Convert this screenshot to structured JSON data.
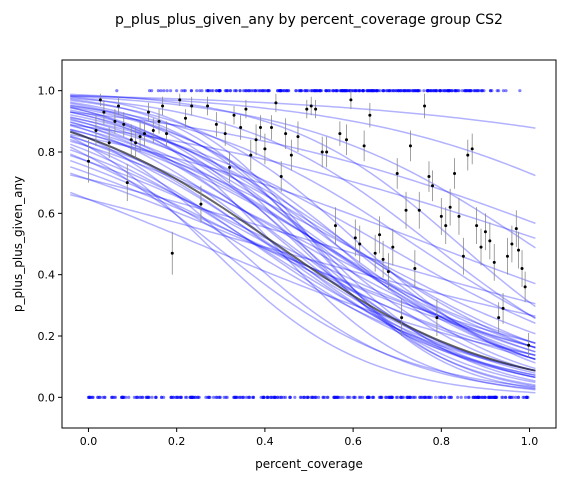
{
  "chart_data": {
    "type": "scatter",
    "title": "p_plus_plus_given_any by percent_coverage group CS2",
    "xlabel": "percent_coverage",
    "ylabel": "p_plus_plus_given_any",
    "xlim": [
      -0.06,
      1.06
    ],
    "ylim": [
      -0.1,
      1.1
    ],
    "xticks": [
      0.0,
      0.2,
      0.4,
      0.6,
      0.8,
      1.0
    ],
    "xtick_labels": [
      "0.0",
      "0.2",
      "0.4",
      "0.6",
      "0.8",
      "1.0"
    ],
    "yticks": [
      0.0,
      0.2,
      0.4,
      0.6,
      0.8,
      1.0
    ],
    "ytick_labels": [
      "0.0",
      "0.2",
      "0.4",
      "0.6",
      "0.8",
      "1.0"
    ],
    "grid": false,
    "colors": {
      "observations": "#0000ff",
      "fits": "#0000ff",
      "mean_fit": "#333333",
      "binned": "#000000",
      "errorbar": "#888888"
    },
    "mean_fit": {
      "form": "logistic",
      "a": 1.7,
      "b": -4.0
    },
    "fit_curves": [
      {
        "a": 2.4,
        "b": -4.3
      },
      {
        "a": 2.0,
        "b": -3.8
      },
      {
        "a": 1.6,
        "b": -3.9
      },
      {
        "a": 1.2,
        "b": -3.5
      },
      {
        "a": 2.8,
        "b": -5.0
      },
      {
        "a": 1.5,
        "b": -3.0
      },
      {
        "a": 1.9,
        "b": -4.5
      },
      {
        "a": 1.1,
        "b": -2.9
      },
      {
        "a": 2.2,
        "b": -4.1
      },
      {
        "a": 1.3,
        "b": -3.2
      },
      {
        "a": 2.6,
        "b": -5.5
      },
      {
        "a": 1.8,
        "b": -3.4
      },
      {
        "a": 1.0,
        "b": -2.6
      },
      {
        "a": 2.1,
        "b": -3.6
      },
      {
        "a": 1.4,
        "b": -3.7
      },
      {
        "a": 1.7,
        "b": -4.2
      },
      {
        "a": 2.5,
        "b": -4.8
      },
      {
        "a": 0.9,
        "b": -2.4
      },
      {
        "a": 2.3,
        "b": -3.9
      },
      {
        "a": 1.6,
        "b": -3.3
      },
      {
        "a": 3.0,
        "b": -5.8
      },
      {
        "a": 1.2,
        "b": -2.8
      },
      {
        "a": 2.0,
        "b": -4.4
      },
      {
        "a": 1.5,
        "b": -4.0
      },
      {
        "a": 3.2,
        "b": -5.2
      },
      {
        "a": 2.7,
        "b": -4.6
      },
      {
        "a": 1.8,
        "b": -3.1
      },
      {
        "a": 2.9,
        "b": -6.0
      },
      {
        "a": 2.2,
        "b": -3.3
      },
      {
        "a": 1.9,
        "b": -3.6
      },
      {
        "a": 2.4,
        "b": -5.0
      },
      {
        "a": 2.1,
        "b": -4.7
      },
      {
        "a": 3.5,
        "b": -4.5
      },
      {
        "a": 4.0,
        "b": -2.0
      },
      {
        "a": 4.0,
        "b": -3.0
      },
      {
        "a": 2.5,
        "b": -2.2
      },
      {
        "a": 1.7,
        "b": -2.2
      },
      {
        "a": 2.0,
        "b": -1.9
      },
      {
        "a": 0.6,
        "b": -1.6
      },
      {
        "a": 0.9,
        "b": -1.7
      },
      {
        "a": 0.6,
        "b": -2.4
      },
      {
        "a": 1.7,
        "b": -5.2
      },
      {
        "a": 1.3,
        "b": -4.6
      },
      {
        "a": 1.5,
        "b": -5.6
      },
      {
        "a": 2.6,
        "b": -6.2
      },
      {
        "a": 3.3,
        "b": -6.5
      },
      {
        "a": 4.2,
        "b": -5.0
      },
      {
        "a": 3.8,
        "b": -3.8
      },
      {
        "a": 3.6,
        "b": -7.0
      },
      {
        "a": 2.8,
        "b": -3.8
      }
    ],
    "observations": {
      "y_values": [
        0,
        1
      ],
      "x_range": [
        0.0,
        1.0
      ],
      "count_per_row": 320
    },
    "binned_points": [
      {
        "x": 0.0,
        "y": 0.77,
        "err": 0.07
      },
      {
        "x": 0.017,
        "y": 0.87,
        "err": 0.05
      },
      {
        "x": 0.027,
        "y": 0.97,
        "err": 0.02
      },
      {
        "x": 0.035,
        "y": 0.93,
        "err": 0.04
      },
      {
        "x": 0.047,
        "y": 0.83,
        "err": 0.05
      },
      {
        "x": 0.06,
        "y": 0.9,
        "err": 0.04
      },
      {
        "x": 0.068,
        "y": 0.95,
        "err": 0.03
      },
      {
        "x": 0.08,
        "y": 0.89,
        "err": 0.04
      },
      {
        "x": 0.088,
        "y": 0.7,
        "err": 0.06
      },
      {
        "x": 0.097,
        "y": 0.84,
        "err": 0.05
      },
      {
        "x": 0.107,
        "y": 0.83,
        "err": 0.05
      },
      {
        "x": 0.117,
        "y": 0.85,
        "err": 0.05
      },
      {
        "x": 0.127,
        "y": 0.86,
        "err": 0.04
      },
      {
        "x": 0.136,
        "y": 0.93,
        "err": 0.03
      },
      {
        "x": 0.147,
        "y": 0.87,
        "err": 0.04
      },
      {
        "x": 0.16,
        "y": 0.9,
        "err": 0.04
      },
      {
        "x": 0.168,
        "y": 0.95,
        "err": 0.03
      },
      {
        "x": 0.177,
        "y": 0.86,
        "err": 0.04
      },
      {
        "x": 0.19,
        "y": 0.47,
        "err": 0.07
      },
      {
        "x": 0.207,
        "y": 0.97,
        "err": 0.02
      },
      {
        "x": 0.22,
        "y": 0.91,
        "err": 0.03
      },
      {
        "x": 0.234,
        "y": 0.95,
        "err": 0.03
      },
      {
        "x": 0.255,
        "y": 0.63,
        "err": 0.06
      },
      {
        "x": 0.27,
        "y": 0.95,
        "err": 0.03
      },
      {
        "x": 0.29,
        "y": 0.89,
        "err": 0.04
      },
      {
        "x": 0.31,
        "y": 0.86,
        "err": 0.04
      },
      {
        "x": 0.32,
        "y": 0.75,
        "err": 0.05
      },
      {
        "x": 0.33,
        "y": 0.92,
        "err": 0.03
      },
      {
        "x": 0.345,
        "y": 0.88,
        "err": 0.04
      },
      {
        "x": 0.357,
        "y": 0.94,
        "err": 0.03
      },
      {
        "x": 0.368,
        "y": 0.79,
        "err": 0.05
      },
      {
        "x": 0.38,
        "y": 0.84,
        "err": 0.05
      },
      {
        "x": 0.39,
        "y": 0.88,
        "err": 0.04
      },
      {
        "x": 0.4,
        "y": 0.81,
        "err": 0.05
      },
      {
        "x": 0.415,
        "y": 0.88,
        "err": 0.04
      },
      {
        "x": 0.425,
        "y": 0.96,
        "err": 0.03
      },
      {
        "x": 0.437,
        "y": 0.72,
        "err": 0.05
      },
      {
        "x": 0.447,
        "y": 0.86,
        "err": 0.05
      },
      {
        "x": 0.46,
        "y": 0.79,
        "err": 0.05
      },
      {
        "x": 0.475,
        "y": 0.85,
        "err": 0.05
      },
      {
        "x": 0.495,
        "y": 0.94,
        "err": 0.03
      },
      {
        "x": 0.505,
        "y": 0.95,
        "err": 0.03
      },
      {
        "x": 0.515,
        "y": 0.94,
        "err": 0.03
      },
      {
        "x": 0.53,
        "y": 0.8,
        "err": 0.05
      },
      {
        "x": 0.54,
        "y": 0.8,
        "err": 0.05
      },
      {
        "x": 0.56,
        "y": 0.56,
        "err": 0.06
      },
      {
        "x": 0.57,
        "y": 0.86,
        "err": 0.04
      },
      {
        "x": 0.585,
        "y": 0.84,
        "err": 0.05
      },
      {
        "x": 0.595,
        "y": 0.97,
        "err": 0.03
      },
      {
        "x": 0.605,
        "y": 0.52,
        "err": 0.06
      },
      {
        "x": 0.615,
        "y": 0.5,
        "err": 0.06
      },
      {
        "x": 0.625,
        "y": 0.82,
        "err": 0.05
      },
      {
        "x": 0.638,
        "y": 0.92,
        "err": 0.04
      },
      {
        "x": 0.65,
        "y": 0.47,
        "err": 0.06
      },
      {
        "x": 0.66,
        "y": 0.53,
        "err": 0.06
      },
      {
        "x": 0.668,
        "y": 0.45,
        "err": 0.06
      },
      {
        "x": 0.68,
        "y": 0.41,
        "err": 0.06
      },
      {
        "x": 0.69,
        "y": 0.49,
        "err": 0.06
      },
      {
        "x": 0.7,
        "y": 0.73,
        "err": 0.05
      },
      {
        "x": 0.71,
        "y": 0.26,
        "err": 0.06
      },
      {
        "x": 0.72,
        "y": 0.61,
        "err": 0.06
      },
      {
        "x": 0.73,
        "y": 0.82,
        "err": 0.05
      },
      {
        "x": 0.74,
        "y": 0.42,
        "err": 0.06
      },
      {
        "x": 0.75,
        "y": 0.61,
        "err": 0.06
      },
      {
        "x": 0.762,
        "y": 0.95,
        "err": 0.04
      },
      {
        "x": 0.772,
        "y": 0.72,
        "err": 0.05
      },
      {
        "x": 0.78,
        "y": 0.69,
        "err": 0.05
      },
      {
        "x": 0.79,
        "y": 0.26,
        "err": 0.06
      },
      {
        "x": 0.8,
        "y": 0.59,
        "err": 0.06
      },
      {
        "x": 0.81,
        "y": 0.56,
        "err": 0.06
      },
      {
        "x": 0.82,
        "y": 0.62,
        "err": 0.06
      },
      {
        "x": 0.83,
        "y": 0.73,
        "err": 0.05
      },
      {
        "x": 0.84,
        "y": 0.59,
        "err": 0.06
      },
      {
        "x": 0.85,
        "y": 0.46,
        "err": 0.06
      },
      {
        "x": 0.86,
        "y": 0.79,
        "err": 0.05
      },
      {
        "x": 0.87,
        "y": 0.81,
        "err": 0.05
      },
      {
        "x": 0.88,
        "y": 0.56,
        "err": 0.06
      },
      {
        "x": 0.89,
        "y": 0.49,
        "err": 0.06
      },
      {
        "x": 0.9,
        "y": 0.54,
        "err": 0.06
      },
      {
        "x": 0.91,
        "y": 0.51,
        "err": 0.06
      },
      {
        "x": 0.92,
        "y": 0.44,
        "err": 0.06
      },
      {
        "x": 0.93,
        "y": 0.26,
        "err": 0.05
      },
      {
        "x": 0.94,
        "y": 0.29,
        "err": 0.05
      },
      {
        "x": 0.95,
        "y": 0.46,
        "err": 0.06
      },
      {
        "x": 0.96,
        "y": 0.5,
        "err": 0.06
      },
      {
        "x": 0.97,
        "y": 0.55,
        "err": 0.06
      },
      {
        "x": 0.975,
        "y": 0.48,
        "err": 0.06
      },
      {
        "x": 0.983,
        "y": 0.42,
        "err": 0.06
      },
      {
        "x": 0.99,
        "y": 0.36,
        "err": 0.05
      },
      {
        "x": 0.998,
        "y": 0.17,
        "err": 0.04
      }
    ]
  }
}
